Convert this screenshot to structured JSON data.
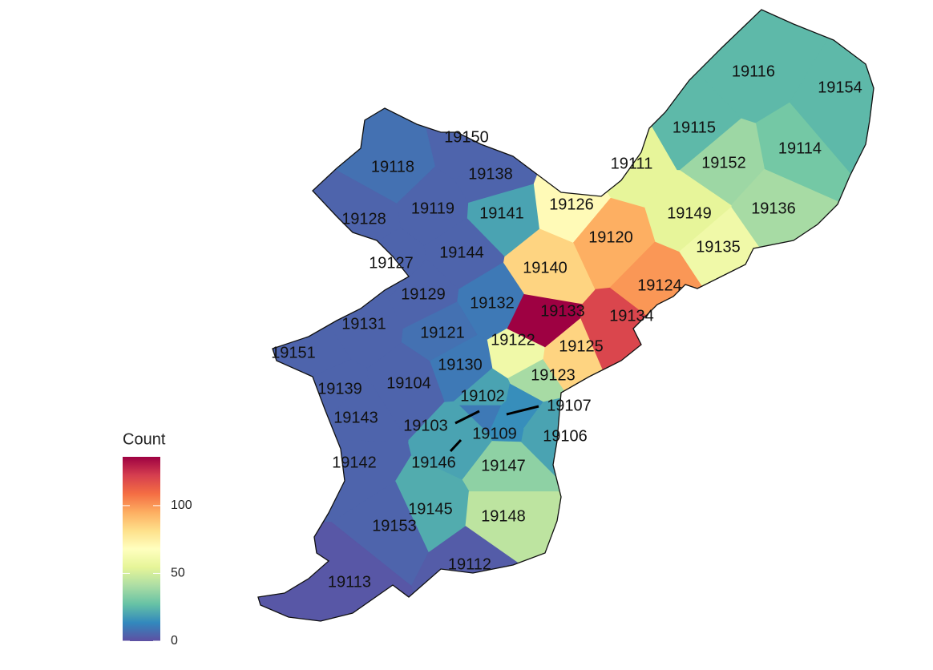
{
  "map": {
    "type": "choropleth",
    "legend": {
      "title": "Count",
      "lim": [
        0,
        136
      ],
      "ticks": [
        0,
        50,
        100
      ]
    },
    "colors": [
      "#5e4fa2",
      "#3288bd",
      "#66c2a5",
      "#abdda4",
      "#e6f598",
      "#ffffbf",
      "#fee08b",
      "#fdae61",
      "#f46d43",
      "#d53e4f",
      "#9e0142"
    ],
    "zips": [
      {
        "zip": "19116",
        "count": 25
      },
      {
        "zip": "19154",
        "count": 25
      },
      {
        "zip": "19115",
        "count": 25
      },
      {
        "zip": "19114",
        "count": 30
      },
      {
        "zip": "19152",
        "count": 38
      },
      {
        "zip": "19136",
        "count": 40
      },
      {
        "zip": "19111",
        "count": 55
      },
      {
        "zip": "19149",
        "count": 55
      },
      {
        "zip": "19135",
        "count": 60
      },
      {
        "zip": "19126",
        "count": 70
      },
      {
        "zip": "19120",
        "count": 95
      },
      {
        "zip": "19124",
        "count": 100
      },
      {
        "zip": "19134",
        "count": 120
      },
      {
        "zip": "19125",
        "count": 85
      },
      {
        "zip": "19133",
        "count": 136
      },
      {
        "zip": "19140",
        "count": 85
      },
      {
        "zip": "19141",
        "count": 20
      },
      {
        "zip": "19138",
        "count": 5
      },
      {
        "zip": "19150",
        "count": 5
      },
      {
        "zip": "19118",
        "count": 8
      },
      {
        "zip": "19119",
        "count": 5
      },
      {
        "zip": "19128",
        "count": 5
      },
      {
        "zip": "19127",
        "count": 5
      },
      {
        "zip": "19144",
        "count": 5
      },
      {
        "zip": "19129",
        "count": 5
      },
      {
        "zip": "19132",
        "count": 10
      },
      {
        "zip": "19131",
        "count": 5
      },
      {
        "zip": "19121",
        "count": 8
      },
      {
        "zip": "19122",
        "count": 60
      },
      {
        "zip": "19123",
        "count": 40
      },
      {
        "zip": "19130",
        "count": 10
      },
      {
        "zip": "19151",
        "count": 5
      },
      {
        "zip": "19139",
        "count": 5
      },
      {
        "zip": "19104",
        "count": 5
      },
      {
        "zip": "19102",
        "count": 20
      },
      {
        "zip": "19103",
        "count": 10
      },
      {
        "zip": "19107",
        "count": 15
      },
      {
        "zip": "19106",
        "count": 20
      },
      {
        "zip": "19109",
        "count": 15
      },
      {
        "zip": "19146",
        "count": 20
      },
      {
        "zip": "19147",
        "count": 35
      },
      {
        "zip": "19143",
        "count": 5
      },
      {
        "zip": "19142",
        "count": 5
      },
      {
        "zip": "19145",
        "count": 22
      },
      {
        "zip": "19148",
        "count": 45
      },
      {
        "zip": "19153",
        "count": 5
      },
      {
        "zip": "19112",
        "count": 3
      },
      {
        "zip": "19113",
        "count": 2
      }
    ]
  }
}
